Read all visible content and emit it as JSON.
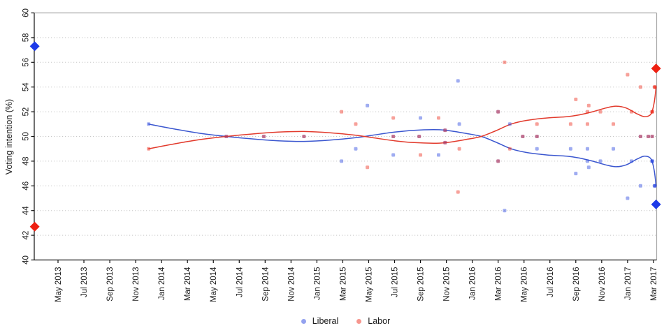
{
  "chart_data": {
    "type": "scatter",
    "title": "",
    "ylabel": "Voting intention (%)",
    "ylim": [
      40,
      60
    ],
    "yticks": [
      40,
      42,
      44,
      46,
      48,
      50,
      52,
      54,
      56,
      58,
      60
    ],
    "x_tick_labels": [
      "May 2013",
      "Jul 2013",
      "Sep 2013",
      "Nov 2013",
      "Jan 2014",
      "Mar 2014",
      "May 2014",
      "Jul 2014",
      "Sep 2014",
      "Nov 2014",
      "Jan 2015",
      "Mar 2015",
      "May 2015",
      "Jul 2015",
      "Sep 2015",
      "Nov 2015",
      "Jan 2016",
      "Mar 2016",
      "May 2016",
      "Jul 2016",
      "Sep 2016",
      "Nov 2016",
      "Jan 2017",
      "Mar 2017"
    ],
    "grid": "horizontal-dotted",
    "legend_position": "bottom-center",
    "colors": {
      "grid": "#c7c7c7",
      "border": "#a8a8a8",
      "axis": "#111111",
      "text": "#1a1a1a"
    },
    "series": [
      {
        "name": "Liberal",
        "line_color": "#3a56cf",
        "point_color": "#2a46e0",
        "diamond_color": "#1d3ae8",
        "points": [
          [
            7.0,
            51
          ],
          [
            13,
            50
          ],
          [
            15.9,
            50
          ],
          [
            19,
            50
          ],
          [
            21.9,
            48
          ],
          [
            23,
            49
          ],
          [
            23.9,
            52.5
          ],
          [
            25.9,
            48.5
          ],
          [
            25.9,
            50
          ],
          [
            27.9,
            50
          ],
          [
            28,
            51.5
          ],
          [
            29.4,
            48.5
          ],
          [
            29.9,
            50.5
          ],
          [
            29.9,
            49.5
          ],
          [
            30.9,
            54.5
          ],
          [
            31,
            51
          ],
          [
            34,
            52
          ],
          [
            34,
            48
          ],
          [
            34.5,
            44
          ],
          [
            34.9,
            51
          ],
          [
            35.9,
            50
          ],
          [
            37,
            50
          ],
          [
            37,
            49
          ],
          [
            39.6,
            49
          ],
          [
            40,
            47
          ],
          [
            40.9,
            49
          ],
          [
            40.9,
            48
          ],
          [
            41,
            47.5
          ],
          [
            41.9,
            48
          ],
          [
            42.9,
            49
          ],
          [
            44,
            45
          ],
          [
            44.3,
            48
          ],
          [
            45,
            46
          ],
          [
            45,
            50
          ],
          [
            45.6,
            50
          ],
          [
            45.9,
            50
          ],
          [
            45.9,
            48,
            1
          ],
          [
            46.1,
            46,
            1
          ]
        ],
        "trend": [
          [
            7,
            51.0
          ],
          [
            9,
            50.6
          ],
          [
            11,
            50.25
          ],
          [
            13,
            50.0
          ],
          [
            15,
            49.8
          ],
          [
            17,
            49.65
          ],
          [
            19,
            49.6
          ],
          [
            21,
            49.7
          ],
          [
            23,
            49.9
          ],
          [
            24.3,
            50.1
          ],
          [
            26,
            50.35
          ],
          [
            27.5,
            50.5
          ],
          [
            29,
            50.55
          ],
          [
            30,
            50.5
          ],
          [
            31.5,
            50.25
          ],
          [
            32.7,
            50.0
          ],
          [
            33.8,
            49.55
          ],
          [
            35,
            49.0
          ],
          [
            36.2,
            48.7
          ],
          [
            37.8,
            48.5
          ],
          [
            39.3,
            48.4
          ],
          [
            40.3,
            48.25
          ],
          [
            41.3,
            48.0
          ],
          [
            42.3,
            47.7
          ],
          [
            43.1,
            47.55
          ],
          [
            43.9,
            47.7
          ],
          [
            44.7,
            48.15
          ],
          [
            45.3,
            48.4
          ],
          [
            45.8,
            48.2
          ],
          [
            46.05,
            47.3
          ],
          [
            46.2,
            46.0
          ]
        ]
      },
      {
        "name": "Labor",
        "line_color": "#e23a2c",
        "point_color": "#ee2e1e",
        "diamond_color": "#ee2012",
        "points": [
          [
            7.0,
            49
          ],
          [
            13,
            50
          ],
          [
            15.9,
            50
          ],
          [
            19,
            50
          ],
          [
            21.9,
            52
          ],
          [
            23,
            51
          ],
          [
            23.9,
            47.5
          ],
          [
            25.9,
            51.5
          ],
          [
            25.9,
            50
          ],
          [
            27.9,
            50
          ],
          [
            28,
            48.5
          ],
          [
            29.4,
            51.5
          ],
          [
            29.9,
            49.5
          ],
          [
            29.9,
            50.5
          ],
          [
            30.9,
            45.5
          ],
          [
            31,
            49
          ],
          [
            34,
            48
          ],
          [
            34,
            52
          ],
          [
            34.5,
            56
          ],
          [
            34.9,
            49
          ],
          [
            35.9,
            50
          ],
          [
            37,
            50
          ],
          [
            37,
            51
          ],
          [
            39.6,
            51
          ],
          [
            40,
            53
          ],
          [
            40.9,
            51
          ],
          [
            40.9,
            52
          ],
          [
            41,
            52.5
          ],
          [
            41.9,
            52
          ],
          [
            42.9,
            51
          ],
          [
            44,
            55
          ],
          [
            44.3,
            52
          ],
          [
            45,
            54
          ],
          [
            45,
            50
          ],
          [
            45.6,
            50
          ],
          [
            45.9,
            50
          ],
          [
            45.9,
            52,
            1
          ],
          [
            46.1,
            54,
            1
          ]
        ],
        "trend": [
          [
            7,
            49.0
          ],
          [
            9,
            49.4
          ],
          [
            11,
            49.75
          ],
          [
            13,
            50.0
          ],
          [
            15,
            50.2
          ],
          [
            17,
            50.35
          ],
          [
            19,
            50.4
          ],
          [
            21,
            50.3
          ],
          [
            23,
            50.1
          ],
          [
            24.3,
            49.9
          ],
          [
            26,
            49.65
          ],
          [
            27.5,
            49.5
          ],
          [
            29,
            49.45
          ],
          [
            30,
            49.5
          ],
          [
            31.5,
            49.75
          ],
          [
            32.7,
            50.0
          ],
          [
            33.8,
            50.45
          ],
          [
            35,
            51.0
          ],
          [
            36.2,
            51.3
          ],
          [
            37.8,
            51.5
          ],
          [
            39.3,
            51.6
          ],
          [
            40.3,
            51.75
          ],
          [
            41.3,
            52.0
          ],
          [
            42.3,
            52.3
          ],
          [
            43.1,
            52.45
          ],
          [
            43.9,
            52.3
          ],
          [
            44.7,
            51.85
          ],
          [
            45.3,
            51.6
          ],
          [
            45.8,
            51.8
          ],
          [
            46.05,
            52.7
          ],
          [
            46.2,
            54.0
          ]
        ]
      }
    ],
    "election_markers": [
      {
        "series": 0,
        "t": -1.8,
        "v": 57.3
      },
      {
        "series": 1,
        "t": -1.8,
        "v": 42.7
      },
      {
        "series": 0,
        "t": 46.2,
        "v": 44.5
      },
      {
        "series": 1,
        "t": 46.2,
        "v": 55.5
      }
    ],
    "legend": {
      "items": [
        {
          "label": "Liberal"
        },
        {
          "label": "Labor"
        }
      ]
    }
  }
}
